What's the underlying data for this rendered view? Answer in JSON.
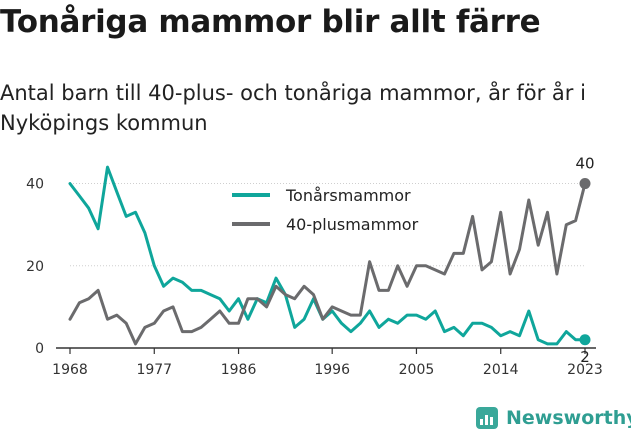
{
  "title": "Tonåriga mammor blir allt färre",
  "subtitle": "Antal barn till 40-plus- och tonåriga mammor, år för år i Nyköpings kommun",
  "brand": "Newsworthy",
  "colors": {
    "teen": "#0fa69b",
    "older": "#6b6b6d",
    "grid": "#cfcfcf",
    "axis": "#333333"
  },
  "chart_data": {
    "type": "line",
    "x": [
      1968,
      1969,
      1970,
      1971,
      1972,
      1973,
      1974,
      1975,
      1976,
      1977,
      1978,
      1979,
      1980,
      1981,
      1982,
      1983,
      1984,
      1985,
      1986,
      1987,
      1988,
      1989,
      1990,
      1991,
      1992,
      1993,
      1994,
      1995,
      1996,
      1997,
      1998,
      1999,
      2000,
      2001,
      2002,
      2003,
      2004,
      2005,
      2006,
      2007,
      2008,
      2009,
      2010,
      2011,
      2012,
      2013,
      2014,
      2015,
      2016,
      2017,
      2018,
      2019,
      2020,
      2021,
      2022,
      2023
    ],
    "x_ticks": [
      "1968",
      "1977",
      "1986",
      "1996",
      "2005",
      "2014",
      "2023"
    ],
    "x_tick_values": [
      1968,
      1977,
      1986,
      1996,
      2005,
      2014,
      2023
    ],
    "y_ticks": [
      "0",
      "20",
      "40"
    ],
    "y_tick_values": [
      0,
      20,
      40
    ],
    "ylim": [
      0,
      45
    ],
    "grid": "horizontal",
    "legend_position": "top-center",
    "series": [
      {
        "name": "Tonårsmammor",
        "color": "#0fa69b",
        "values": [
          40,
          37,
          34,
          29,
          44,
          38,
          32,
          33,
          28,
          20,
          15,
          17,
          16,
          14,
          14,
          13,
          12,
          9,
          12,
          7,
          12,
          11,
          17,
          13,
          5,
          7,
          12,
          7,
          9,
          6,
          4,
          6,
          9,
          5,
          7,
          6,
          8,
          8,
          7,
          9,
          4,
          5,
          3,
          6,
          6,
          5,
          3,
          4,
          3,
          9,
          2,
          1,
          1,
          4,
          2,
          2
        ],
        "end_label": "2"
      },
      {
        "name": "40-plusmammor",
        "color": "#6b6b6d",
        "values": [
          7,
          11,
          12,
          14,
          7,
          8,
          6,
          1,
          5,
          6,
          9,
          10,
          4,
          4,
          5,
          7,
          9,
          6,
          6,
          12,
          12,
          10,
          15,
          13,
          12,
          15,
          13,
          7,
          10,
          9,
          8,
          8,
          21,
          14,
          14,
          20,
          15,
          20,
          20,
          19,
          18,
          23,
          23,
          32,
          19,
          21,
          33,
          18,
          24,
          36,
          25,
          33,
          18,
          30,
          31,
          40
        ],
        "end_label": "40"
      }
    ]
  }
}
